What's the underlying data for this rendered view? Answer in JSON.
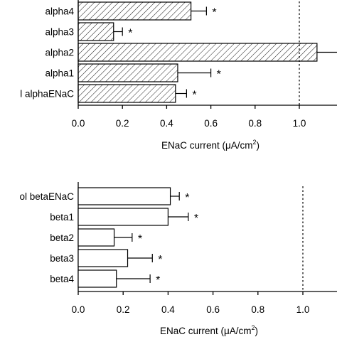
{
  "chart_data": [
    {
      "type": "bar",
      "orientation": "horizontal",
      "pattern": "hatched",
      "categories": [
        "alpha4",
        "alpha3",
        "alpha2",
        "alpha1",
        "l alphaENaC"
      ],
      "values": [
        0.51,
        0.16,
        1.08,
        0.45,
        0.44
      ],
      "errors": [
        0.07,
        0.04,
        0.2,
        0.15,
        0.05
      ],
      "significance": [
        "*",
        "*",
        "",
        "*",
        "*"
      ],
      "xlabel": "ENaC current (μA/cm2)",
      "xlabel_main": "ENaC current (μA/cm",
      "xlabel_sup": "2",
      "xlabel_close": ")",
      "xlim": [
        0,
        1.2
      ],
      "xticks": [
        "0.0",
        "0.2",
        "0.4",
        "0.6",
        "0.8",
        "1.0",
        "1"
      ],
      "reference_line": 1.0
    },
    {
      "type": "bar",
      "orientation": "horizontal",
      "pattern": "open",
      "categories": [
        "ol betaENaC",
        "beta1",
        "beta2",
        "beta3",
        "beta4"
      ],
      "values": [
        0.41,
        0.4,
        0.16,
        0.22,
        0.17
      ],
      "errors": [
        0.04,
        0.09,
        0.08,
        0.11,
        0.15
      ],
      "significance": [
        "*",
        "*",
        "*",
        "*",
        "*"
      ],
      "xlabel": "ENaC current (μA/cm2)",
      "xlabel_main": "ENaC current (μA/cm",
      "xlabel_sup": "2",
      "xlabel_close": ")",
      "xlim": [
        0,
        1.2
      ],
      "xticks": [
        "0.0",
        "0.2",
        "0.4",
        "0.6",
        "0.8",
        "1.0"
      ],
      "reference_line": 1.0
    }
  ]
}
